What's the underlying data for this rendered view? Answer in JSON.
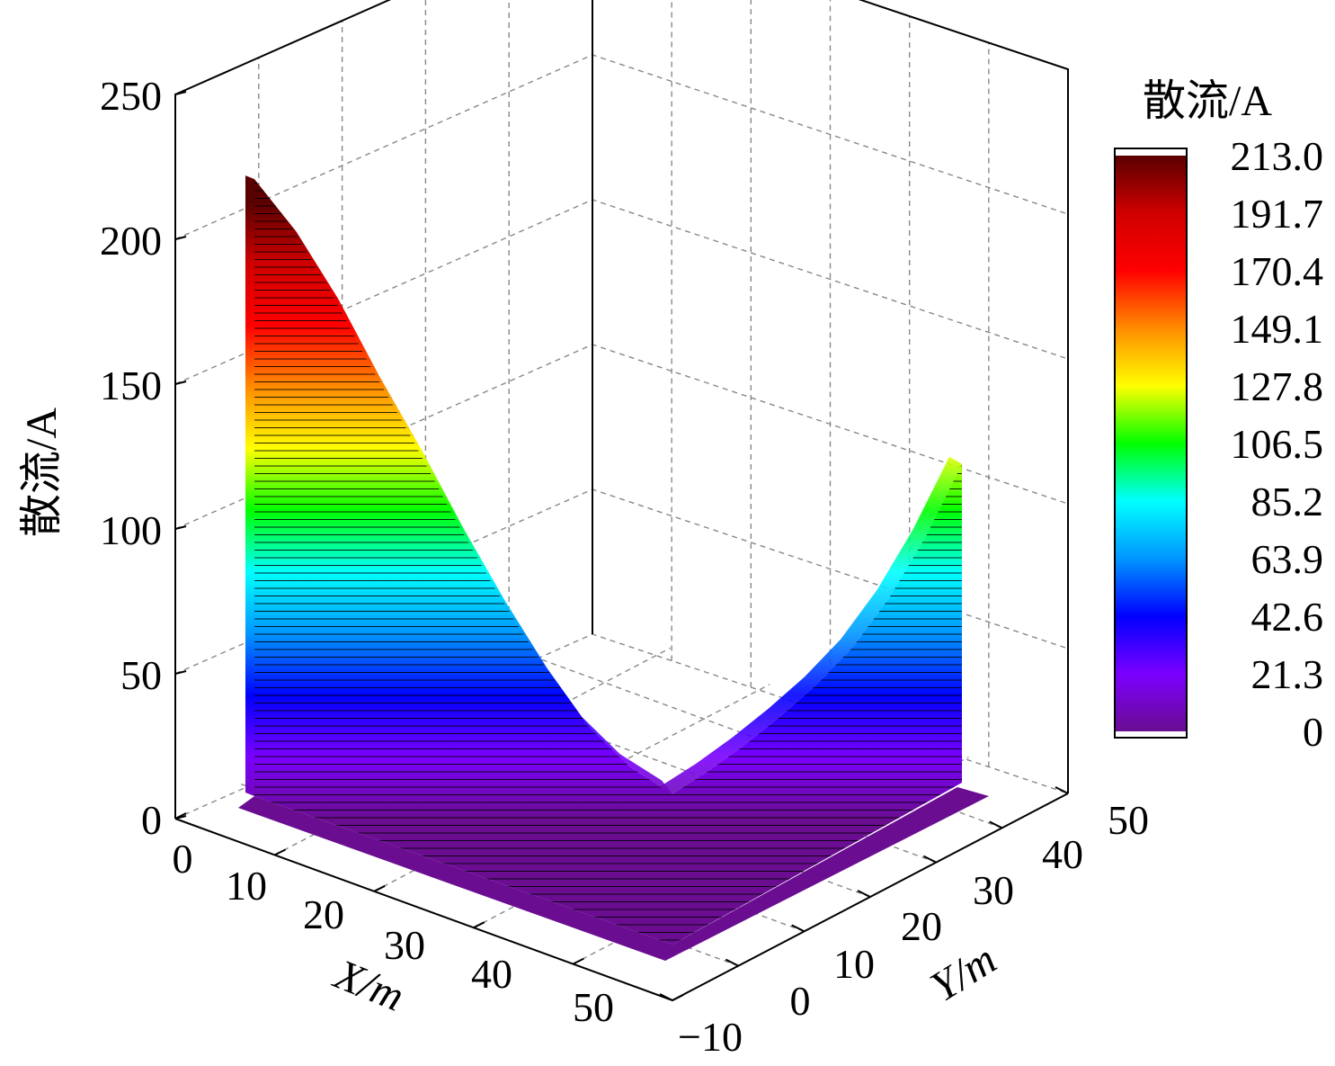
{
  "chart_data": {
    "type": "surface3d",
    "zlabel": "散流/A",
    "xlabel": "X/m",
    "ylabel": "Y/m",
    "zlim": [
      0,
      250
    ],
    "xlim": [
      0,
      50
    ],
    "ylim": [
      -10,
      50
    ],
    "z_ticks": [
      "0",
      "50",
      "100",
      "150",
      "200",
      "250"
    ],
    "x_ticks": [
      "0",
      "10",
      "20",
      "30",
      "40",
      "50"
    ],
    "y_ticks": [
      "−10",
      "0",
      "10",
      "20",
      "30",
      "40",
      "50"
    ],
    "grid": true,
    "colorbar": {
      "title": "散流/A",
      "min": 0,
      "max": 213.0,
      "labels": [
        "213.0",
        "191.7",
        "170.4",
        "149.1",
        "127.8",
        "106.5",
        "85.2",
        "63.9",
        "42.6",
        "21.3",
        "0"
      ]
    },
    "profile_along_x": {
      "y": 0,
      "x": [
        0,
        5,
        10,
        15,
        20,
        25,
        30,
        35,
        40,
        45,
        50
      ],
      "z": [
        213,
        200,
        182,
        160,
        140,
        118,
        98,
        80,
        65,
        56,
        52
      ]
    },
    "profile_along_y": {
      "x": 50,
      "y": [
        0,
        5,
        10,
        15,
        20,
        25,
        30,
        35,
        40
      ],
      "z": [
        52,
        53,
        55,
        58,
        62,
        68,
        78,
        92,
        110
      ]
    },
    "colors": {
      "stops": [
        "#6a0d91",
        "#7a00ff",
        "#0000ff",
        "#0096ff",
        "#00ffff",
        "#00ff00",
        "#ffff00",
        "#ff8c00",
        "#ff0000",
        "#d00000",
        "#5a0000"
      ]
    }
  }
}
